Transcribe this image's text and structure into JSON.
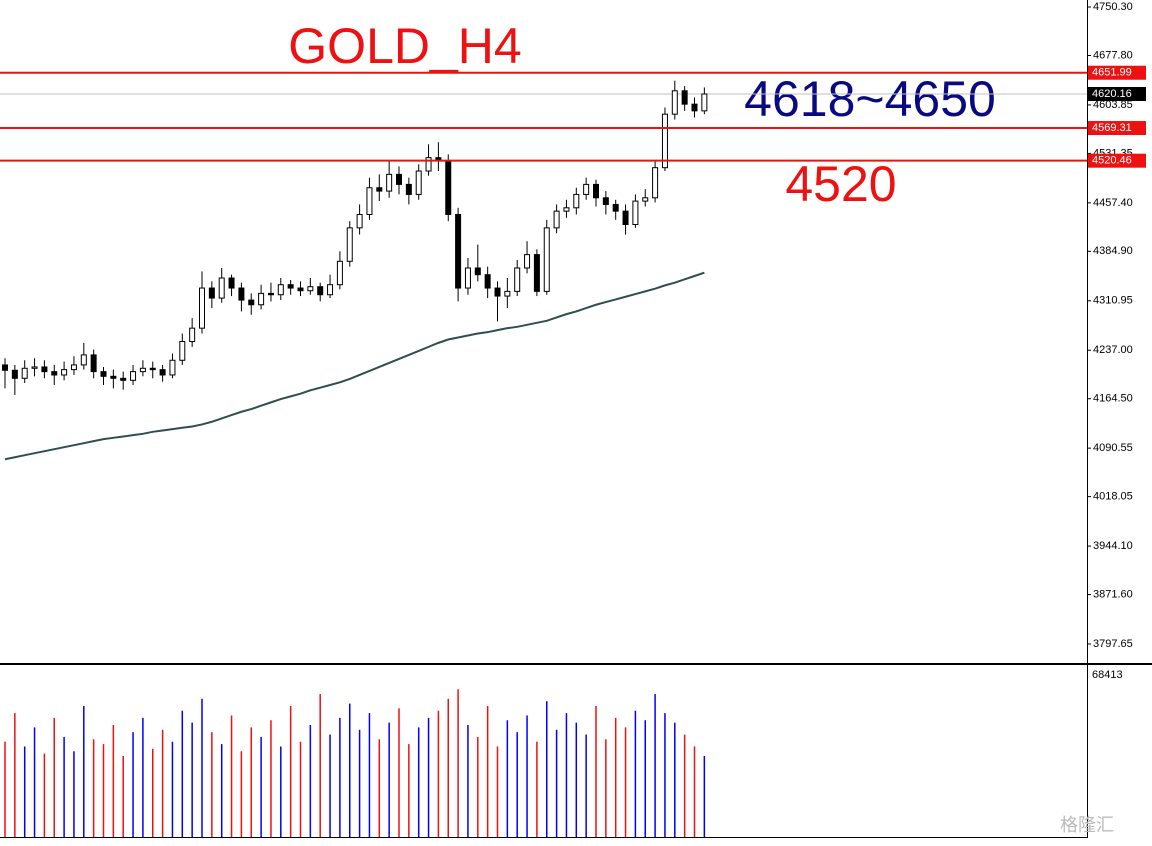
{
  "chart_data": {
    "type": "candlestick",
    "title": "GOLD_H4",
    "annotations": [
      {
        "text": "4618~4650",
        "color": "#0a0a80"
      },
      {
        "text": "4520",
        "color": "#ee1111"
      }
    ],
    "watermark": "格隆汇",
    "ylim": [
      3769.24,
      4760.77
    ],
    "yticks": [
      {
        "value": 4750.3,
        "label": "4750.30"
      },
      {
        "value": 4677.8,
        "label": "4677.80"
      },
      {
        "value": 4603.85,
        "label": "4603.85"
      },
      {
        "value": 4531.35,
        "label": "4531.35"
      },
      {
        "value": 4457.4,
        "label": "4457.40"
      },
      {
        "value": 4384.9,
        "label": "4384.90"
      },
      {
        "value": 4310.95,
        "label": "4310.95"
      },
      {
        "value": 4237,
        "label": "4237.00"
      },
      {
        "value": 4164.5,
        "label": "4164.50"
      },
      {
        "value": 4090.55,
        "label": "4090.55"
      },
      {
        "value": 4018.05,
        "label": "4018.05"
      },
      {
        "value": 3944.1,
        "label": "3944.10"
      },
      {
        "value": 3871.6,
        "label": "3871.60"
      },
      {
        "value": 3797.65,
        "label": "3797.65"
      }
    ],
    "levels": [
      {
        "value": 4651.99,
        "color": "#ee1111"
      },
      {
        "value": 4569.31,
        "color": "#ee1111"
      },
      {
        "value": 4520.46,
        "color": "#ee1111"
      }
    ],
    "current_price": 4620.16,
    "candle_color": "#000000",
    "ma_color": "#2f4f4f",
    "up_volume_color": "#0000ff",
    "down_volume_color": "#ee1111",
    "open": [
      4215,
      4207,
      4195,
      4210,
      4212,
      4205,
      4200,
      4208,
      4215,
      4230,
      4205,
      4198,
      4195,
      4192,
      4205,
      4210,
      4208,
      4200,
      4222,
      4250,
      4270,
      4330,
      4315,
      4345,
      4330,
      4312,
      4305,
      4322,
      4320,
      4335,
      4330,
      4326,
      4332,
      4320,
      4335,
      4370,
      4420,
      4440,
      4480,
      4475,
      4500,
      4485,
      4470,
      4505,
      4525,
      4520,
      4440,
      4330,
      4360,
      4350,
      4330,
      4318,
      4325,
      4360,
      4380,
      4325,
      4420,
      4445,
      4450,
      4470,
      4485,
      4465,
      4455,
      4445,
      4425,
      4460,
      4465,
      4510,
      4590,
      4625,
      4605,
      4595
    ],
    "high": [
      4225,
      4215,
      4222,
      4225,
      4222,
      4215,
      4220,
      4228,
      4248,
      4238,
      4212,
      4208,
      4205,
      4215,
      4222,
      4220,
      4215,
      4232,
      4262,
      4285,
      4355,
      4340,
      4360,
      4350,
      4338,
      4322,
      4335,
      4338,
      4345,
      4342,
      4340,
      4345,
      4338,
      4350,
      4385,
      4430,
      4455,
      4495,
      4500,
      4520,
      4512,
      4495,
      4515,
      4545,
      4548,
      4530,
      4450,
      4375,
      4395,
      4362,
      4340,
      4345,
      4372,
      4400,
      4388,
      4432,
      4455,
      4462,
      4480,
      4495,
      4492,
      4475,
      4462,
      4455,
      4470,
      4478,
      4520,
      4600,
      4640,
      4632,
      4615,
      4630
    ],
    "low": [
      4180,
      4170,
      4188,
      4198,
      4195,
      4185,
      4192,
      4200,
      4208,
      4195,
      4185,
      4180,
      4178,
      4185,
      4198,
      4195,
      4190,
      4195,
      4215,
      4242,
      4262,
      4300,
      4308,
      4318,
      4295,
      4290,
      4298,
      4310,
      4312,
      4320,
      4318,
      4320,
      4310,
      4315,
      4328,
      4362,
      4410,
      4432,
      4460,
      4465,
      4470,
      4455,
      4462,
      4498,
      4505,
      4430,
      4310,
      4320,
      4340,
      4315,
      4280,
      4300,
      4318,
      4352,
      4318,
      4320,
      4412,
      4435,
      4440,
      4462,
      4452,
      4440,
      4432,
      4410,
      4420,
      4452,
      4458,
      4505,
      4582,
      4595,
      4585,
      4590
    ],
    "close": [
      4207,
      4195,
      4210,
      4212,
      4205,
      4200,
      4208,
      4215,
      4230,
      4205,
      4198,
      4195,
      4192,
      4205,
      4210,
      4208,
      4200,
      4222,
      4250,
      4270,
      4330,
      4315,
      4345,
      4330,
      4312,
      4305,
      4322,
      4320,
      4335,
      4330,
      4326,
      4332,
      4320,
      4335,
      4370,
      4420,
      4440,
      4480,
      4475,
      4500,
      4485,
      4470,
      4505,
      4525,
      4520,
      4440,
      4330,
      4360,
      4350,
      4330,
      4318,
      4325,
      4360,
      4380,
      4325,
      4420,
      4445,
      4450,
      4470,
      4485,
      4465,
      4455,
      4445,
      4425,
      4460,
      4465,
      4510,
      4590,
      4625,
      4605,
      4595,
      4620.16
    ],
    "ma": [
      4074,
      4077,
      4080,
      4083,
      4086,
      4089,
      4092,
      4095,
      4098,
      4101,
      4104,
      4106,
      4108,
      4110,
      4112,
      4115,
      4117,
      4119,
      4121,
      4123,
      4126,
      4130,
      4135,
      4140,
      4145,
      4149,
      4154,
      4159,
      4164,
      4168,
      4172,
      4177,
      4181,
      4185,
      4189,
      4194,
      4200,
      4206,
      4212,
      4218,
      4224,
      4230,
      4236,
      4242,
      4248,
      4253,
      4256,
      4259,
      4262,
      4264,
      4267,
      4270,
      4272,
      4275,
      4278,
      4281,
      4286,
      4291,
      4295,
      4300,
      4305,
      4309,
      4313,
      4317,
      4321,
      4325,
      4329,
      4334,
      4338,
      4343,
      4348,
      4353
    ],
    "volume": [
      40000,
      52000,
      38000,
      46000,
      35000,
      50000,
      42000,
      36000,
      55000,
      41000,
      39000,
      47000,
      34000,
      44000,
      50000,
      37000,
      45000,
      40000,
      53000,
      48000,
      58000,
      44000,
      39000,
      51000,
      36000,
      46000,
      42000,
      49000,
      38000,
      55000,
      40000,
      47000,
      60000,
      43000,
      50000,
      56000,
      45000,
      52000,
      41000,
      48000,
      54000,
      39000,
      46000,
      50000,
      53000,
      58000,
      62000,
      47000,
      42000,
      55000,
      38000,
      49000,
      44000,
      51000,
      40000,
      57000,
      45000,
      52000,
      48000,
      43000,
      55000,
      41000,
      50000,
      46000,
      53000,
      49000,
      60000,
      52000,
      48000,
      43000,
      38000,
      34000
    ],
    "volume_ylim": [
      0,
      68413
    ]
  }
}
